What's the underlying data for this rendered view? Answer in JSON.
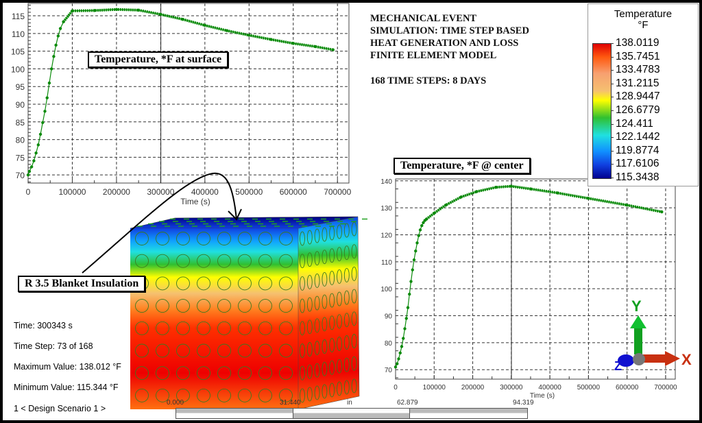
{
  "header": {
    "title_lines": [
      "MECHANICAL EVENT",
      "SIMULATION: TIME STEP BASED",
      "HEAT GENERATION AND LOSS",
      "FINITE ELEMENT MODEL"
    ],
    "steps_text": "168 TIME STEPS: 8 DAYS"
  },
  "annotations": {
    "insulation_label": "R 3.5 Blanket Insulation"
  },
  "legend": {
    "title": "Temperature",
    "unit": "°F",
    "values": [
      "138.0119",
      "135.7451",
      "133.4783",
      "131.2115",
      "128.9447",
      "126.6779",
      "124.411",
      "122.1442",
      "119.8774",
      "117.6106",
      "115.3438"
    ],
    "colormap": [
      "#e00000",
      "#ff5a10",
      "#f7a070",
      "#ffff00",
      "#30c030",
      "#20e0e0",
      "#1090ff",
      "#000090"
    ]
  },
  "info": {
    "time": "Time: 300343 s",
    "time_step": "Time Step:  73 of 168",
    "max_value": "Maximum Value: 138.012 °F",
    "min_value": "Minimum Value: 115.344 °F",
    "scenario": "1 < Design Scenario 1 >"
  },
  "scale_bar": {
    "labels": [
      "0.000",
      "31.440",
      "in",
      "62.879",
      "94.319"
    ]
  },
  "triad": {
    "x": "X",
    "y": "Y",
    "z": "Z",
    "x_color": "#c83010",
    "y_color": "#10a020",
    "z_color": "#1010d0"
  },
  "chart_data": [
    {
      "type": "line",
      "title": "Temperature, *F at surface",
      "xlabel": "Time (s)",
      "ylabel": "",
      "xlim": [
        0,
        726000
      ],
      "ylim": [
        67.7,
        118.5
      ],
      "xticks": [
        0,
        100000,
        200000,
        300000,
        400000,
        500000,
        600000,
        700000
      ],
      "yticks": [
        70,
        75,
        80,
        85,
        90,
        95,
        100,
        105,
        110,
        115
      ],
      "grid": true,
      "current_time": 300343,
      "color": "#0a8a0a",
      "x": [
        0,
        3000,
        8000,
        13000,
        18000,
        23000,
        28000,
        33000,
        38000,
        43000,
        48000,
        53000,
        58000,
        63000,
        68000,
        73000,
        80000,
        100000,
        150000,
        200000,
        250000,
        300000,
        350000,
        400000,
        450000,
        500000,
        550000,
        600000,
        650000,
        690000
      ],
      "y": [
        70,
        71,
        72.3,
        74,
        76.2,
        78.5,
        81.5,
        84.8,
        88,
        91.8,
        96,
        100,
        103.5,
        106.7,
        109.3,
        111.4,
        113.3,
        116.4,
        116.5,
        116.8,
        116.6,
        115.4,
        114.0,
        112.3,
        110.8,
        109.5,
        108.3,
        107.2,
        106.3,
        105.4
      ]
    },
    {
      "type": "line",
      "title": "Temperature, *F @ center",
      "xlabel": "Time (s)",
      "ylabel": "",
      "xlim": [
        0,
        725000
      ],
      "ylim": [
        66.5,
        140.7
      ],
      "xticks": [
        0,
        100000,
        200000,
        300000,
        400000,
        500000,
        600000,
        700000
      ],
      "yticks": [
        70,
        80,
        90,
        100,
        110,
        120,
        130,
        140
      ],
      "grid": true,
      "current_time": 300343,
      "color": "#0a8a0a",
      "x": [
        0,
        4000,
        8000,
        12000,
        16000,
        20000,
        24000,
        28000,
        32000,
        36000,
        40000,
        44000,
        48000,
        52000,
        56000,
        60000,
        64000,
        68000,
        72000,
        76000,
        80000,
        100000,
        130000,
        170000,
        210000,
        260000,
        300000,
        350000,
        420000,
        500000,
        600000,
        690000
      ],
      "y": [
        71,
        72.2,
        74,
        76.2,
        78.6,
        81.6,
        85.2,
        89,
        93,
        98,
        102.7,
        107,
        110.7,
        114,
        117,
        119.7,
        121.8,
        123.4,
        124.5,
        125.3,
        125.8,
        128,
        131,
        134,
        136,
        137.6,
        138,
        137,
        135.5,
        133.5,
        131,
        128.5
      ]
    }
  ]
}
